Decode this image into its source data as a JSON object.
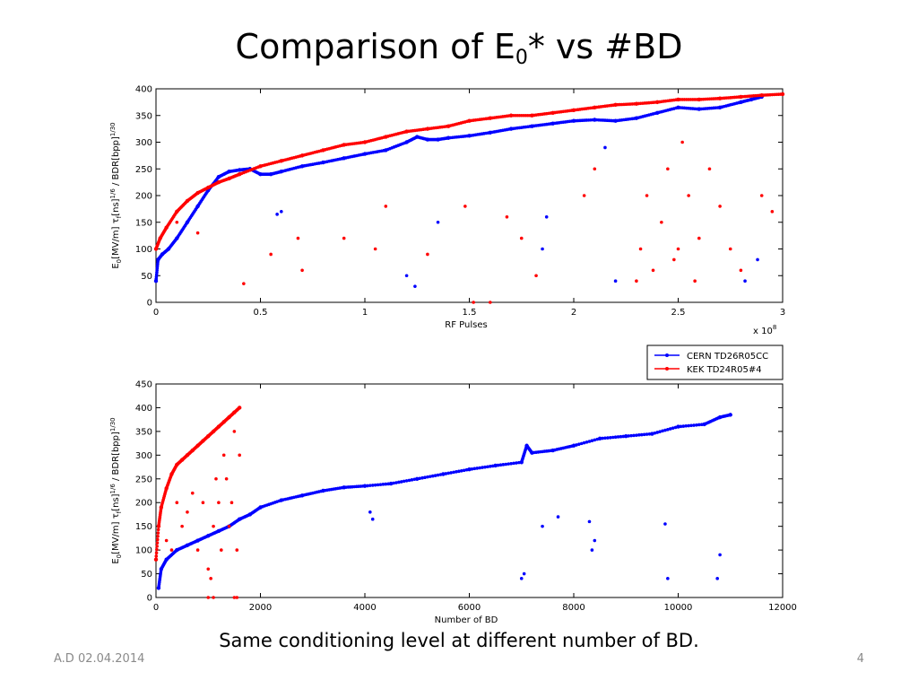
{
  "slide": {
    "title_main": "Comparison of E",
    "title_sub": "0",
    "title_rest": "* vs #BD",
    "caption": "Same conditioning level at different number of BD.",
    "footer_left": "A.D 02.04.2014",
    "page_number": "4"
  },
  "colors": {
    "cern": "#0000ff",
    "kek": "#ff0000",
    "axis": "#000000"
  },
  "chart_data": [
    {
      "type": "scatter",
      "title": "",
      "xlabel": "RF Pulses",
      "x_multiplier": "x 10",
      "x_multiplier_exp": "8",
      "ylabel_parts": [
        "E",
        "0",
        "[MV/m] τ",
        "f",
        "[ns]",
        "1/6",
        " / BDR[bpp]",
        "1/30"
      ],
      "xlim": [
        0,
        3
      ],
      "ylim": [
        0,
        400
      ],
      "xticks": [
        0,
        0.5,
        1,
        1.5,
        2,
        2.5,
        3
      ],
      "xtick_labels": [
        "0",
        "0.5",
        "1",
        "1.5",
        "2",
        "2.5",
        "3"
      ],
      "yticks": [
        0,
        50,
        100,
        150,
        200,
        250,
        300,
        350,
        400
      ],
      "ytick_labels": [
        "0",
        "50",
        "100",
        "150",
        "200",
        "250",
        "300",
        "350",
        "400"
      ],
      "grid": false,
      "series": [
        {
          "name": "CERN TD26R05CC",
          "x": [
            0,
            0.01,
            0.03,
            0.06,
            0.1,
            0.15,
            0.2,
            0.25,
            0.3,
            0.35,
            0.4,
            0.45,
            0.5,
            0.55,
            0.6,
            0.7,
            0.8,
            0.9,
            1.0,
            1.1,
            1.2,
            1.25,
            1.3,
            1.35,
            1.4,
            1.5,
            1.6,
            1.7,
            1.8,
            1.9,
            2.0,
            2.1,
            2.2,
            2.3,
            2.4,
            2.5,
            2.6,
            2.7,
            2.8,
            2.85,
            2.9
          ],
          "values": [
            40,
            80,
            90,
            100,
            120,
            150,
            180,
            210,
            235,
            245,
            248,
            250,
            240,
            240,
            245,
            255,
            262,
            270,
            278,
            285,
            300,
            310,
            305,
            305,
            308,
            312,
            318,
            325,
            330,
            335,
            340,
            342,
            340,
            345,
            355,
            365,
            362,
            365,
            375,
            380,
            385
          ],
          "outliers_x": [
            0.58,
            0.6,
            1.2,
            1.24,
            1.85,
            1.87,
            2.15,
            2.2,
            2.82,
            2.88,
            1.35
          ],
          "outliers_y": [
            165,
            170,
            50,
            30,
            100,
            160,
            290,
            40,
            40,
            80,
            150
          ]
        },
        {
          "name": "KEK TD24R05#4",
          "x": [
            0,
            0.02,
            0.05,
            0.1,
            0.15,
            0.2,
            0.25,
            0.3,
            0.35,
            0.4,
            0.5,
            0.6,
            0.7,
            0.8,
            0.9,
            1.0,
            1.1,
            1.2,
            1.3,
            1.4,
            1.5,
            1.6,
            1.7,
            1.8,
            1.9,
            2.0,
            2.1,
            2.2,
            2.3,
            2.4,
            2.5,
            2.6,
            2.7,
            2.8,
            2.9,
            3.0
          ],
          "values": [
            100,
            120,
            140,
            170,
            190,
            205,
            215,
            225,
            232,
            240,
            255,
            265,
            275,
            285,
            295,
            300,
            310,
            320,
            325,
            330,
            340,
            345,
            350,
            350,
            355,
            360,
            365,
            370,
            372,
            375,
            380,
            380,
            382,
            385,
            388,
            390
          ],
          "outliers_x": [
            0.1,
            0.2,
            0.42,
            0.55,
            0.68,
            0.7,
            0.9,
            1.05,
            1.1,
            1.3,
            1.48,
            1.52,
            1.6,
            1.68,
            1.75,
            1.82,
            2.05,
            2.1,
            2.3,
            2.32,
            2.35,
            2.38,
            2.42,
            2.45,
            2.48,
            2.5,
            2.52,
            2.55,
            2.58,
            2.6,
            2.65,
            2.7,
            2.75,
            2.8,
            2.9,
            2.95
          ],
          "outliers_y": [
            150,
            130,
            35,
            90,
            120,
            60,
            120,
            100,
            180,
            90,
            180,
            0,
            0,
            160,
            120,
            50,
            200,
            250,
            40,
            100,
            200,
            60,
            150,
            250,
            80,
            100,
            300,
            200,
            40,
            120,
            250,
            180,
            100,
            60,
            200,
            170
          ]
        }
      ],
      "legend": {
        "position": "below",
        "entries": [
          "CERN TD26R05CC",
          "KEK TD24R05#4"
        ]
      }
    },
    {
      "type": "scatter",
      "title": "",
      "xlabel": "Number of BD",
      "ylabel_parts": [
        "E",
        "0",
        "[MV/m] τ",
        "f",
        "[ns]",
        "1/6",
        " / BDR[bpp]",
        "1/30"
      ],
      "xlim": [
        0,
        12000
      ],
      "ylim": [
        0,
        450
      ],
      "xticks": [
        0,
        2000,
        4000,
        6000,
        8000,
        10000,
        12000
      ],
      "xtick_labels": [
        "0",
        "2000",
        "4000",
        "6000",
        "8000",
        "10000",
        "12000"
      ],
      "yticks": [
        0,
        50,
        100,
        150,
        200,
        250,
        300,
        350,
        400,
        450
      ],
      "ytick_labels": [
        "0",
        "50",
        "100",
        "150",
        "200",
        "250",
        "300",
        "350",
        "400",
        "450"
      ],
      "grid": false,
      "series": [
        {
          "name": "CERN TD26R05CC",
          "x": [
            50,
            100,
            200,
            400,
            600,
            800,
            1000,
            1200,
            1400,
            1600,
            1800,
            2000,
            2400,
            2800,
            3200,
            3600,
            4000,
            4500,
            5000,
            5500,
            6000,
            6500,
            7000,
            7100,
            7200,
            7600,
            8000,
            8500,
            9000,
            9500,
            10000,
            10500,
            10800,
            11000
          ],
          "values": [
            20,
            60,
            80,
            100,
            110,
            120,
            130,
            140,
            150,
            165,
            175,
            190,
            205,
            215,
            225,
            232,
            235,
            240,
            250,
            260,
            270,
            278,
            285,
            320,
            305,
            310,
            320,
            335,
            340,
            345,
            360,
            365,
            380,
            385
          ],
          "outliers_x": [
            4100,
            4150,
            7000,
            7050,
            7400,
            7700,
            8300,
            8350,
            8400,
            9750,
            9800,
            10750,
            10800
          ],
          "outliers_y": [
            180,
            165,
            40,
            50,
            150,
            170,
            160,
            100,
            120,
            155,
            40,
            40,
            90
          ]
        },
        {
          "name": "KEK TD24R05#4",
          "x": [
            0,
            50,
            100,
            200,
            300,
            400,
            500,
            600,
            700,
            800,
            900,
            1000,
            1100,
            1200,
            1300,
            1400,
            1500,
            1600
          ],
          "values": [
            80,
            150,
            190,
            230,
            260,
            280,
            290,
            300,
            310,
            320,
            330,
            340,
            350,
            360,
            370,
            380,
            390,
            400
          ],
          "outliers_x": [
            200,
            300,
            400,
            500,
            600,
            700,
            800,
            900,
            1000,
            1050,
            1100,
            1150,
            1200,
            1250,
            1300,
            1350,
            1400,
            1450,
            1500,
            1550,
            1600,
            1000,
            1100,
            1500,
            1550
          ],
          "outliers_y": [
            120,
            100,
            200,
            150,
            180,
            220,
            100,
            200,
            60,
            40,
            150,
            250,
            200,
            100,
            300,
            250,
            150,
            200,
            350,
            100,
            300,
            0,
            0,
            0,
            0
          ]
        }
      ]
    }
  ]
}
